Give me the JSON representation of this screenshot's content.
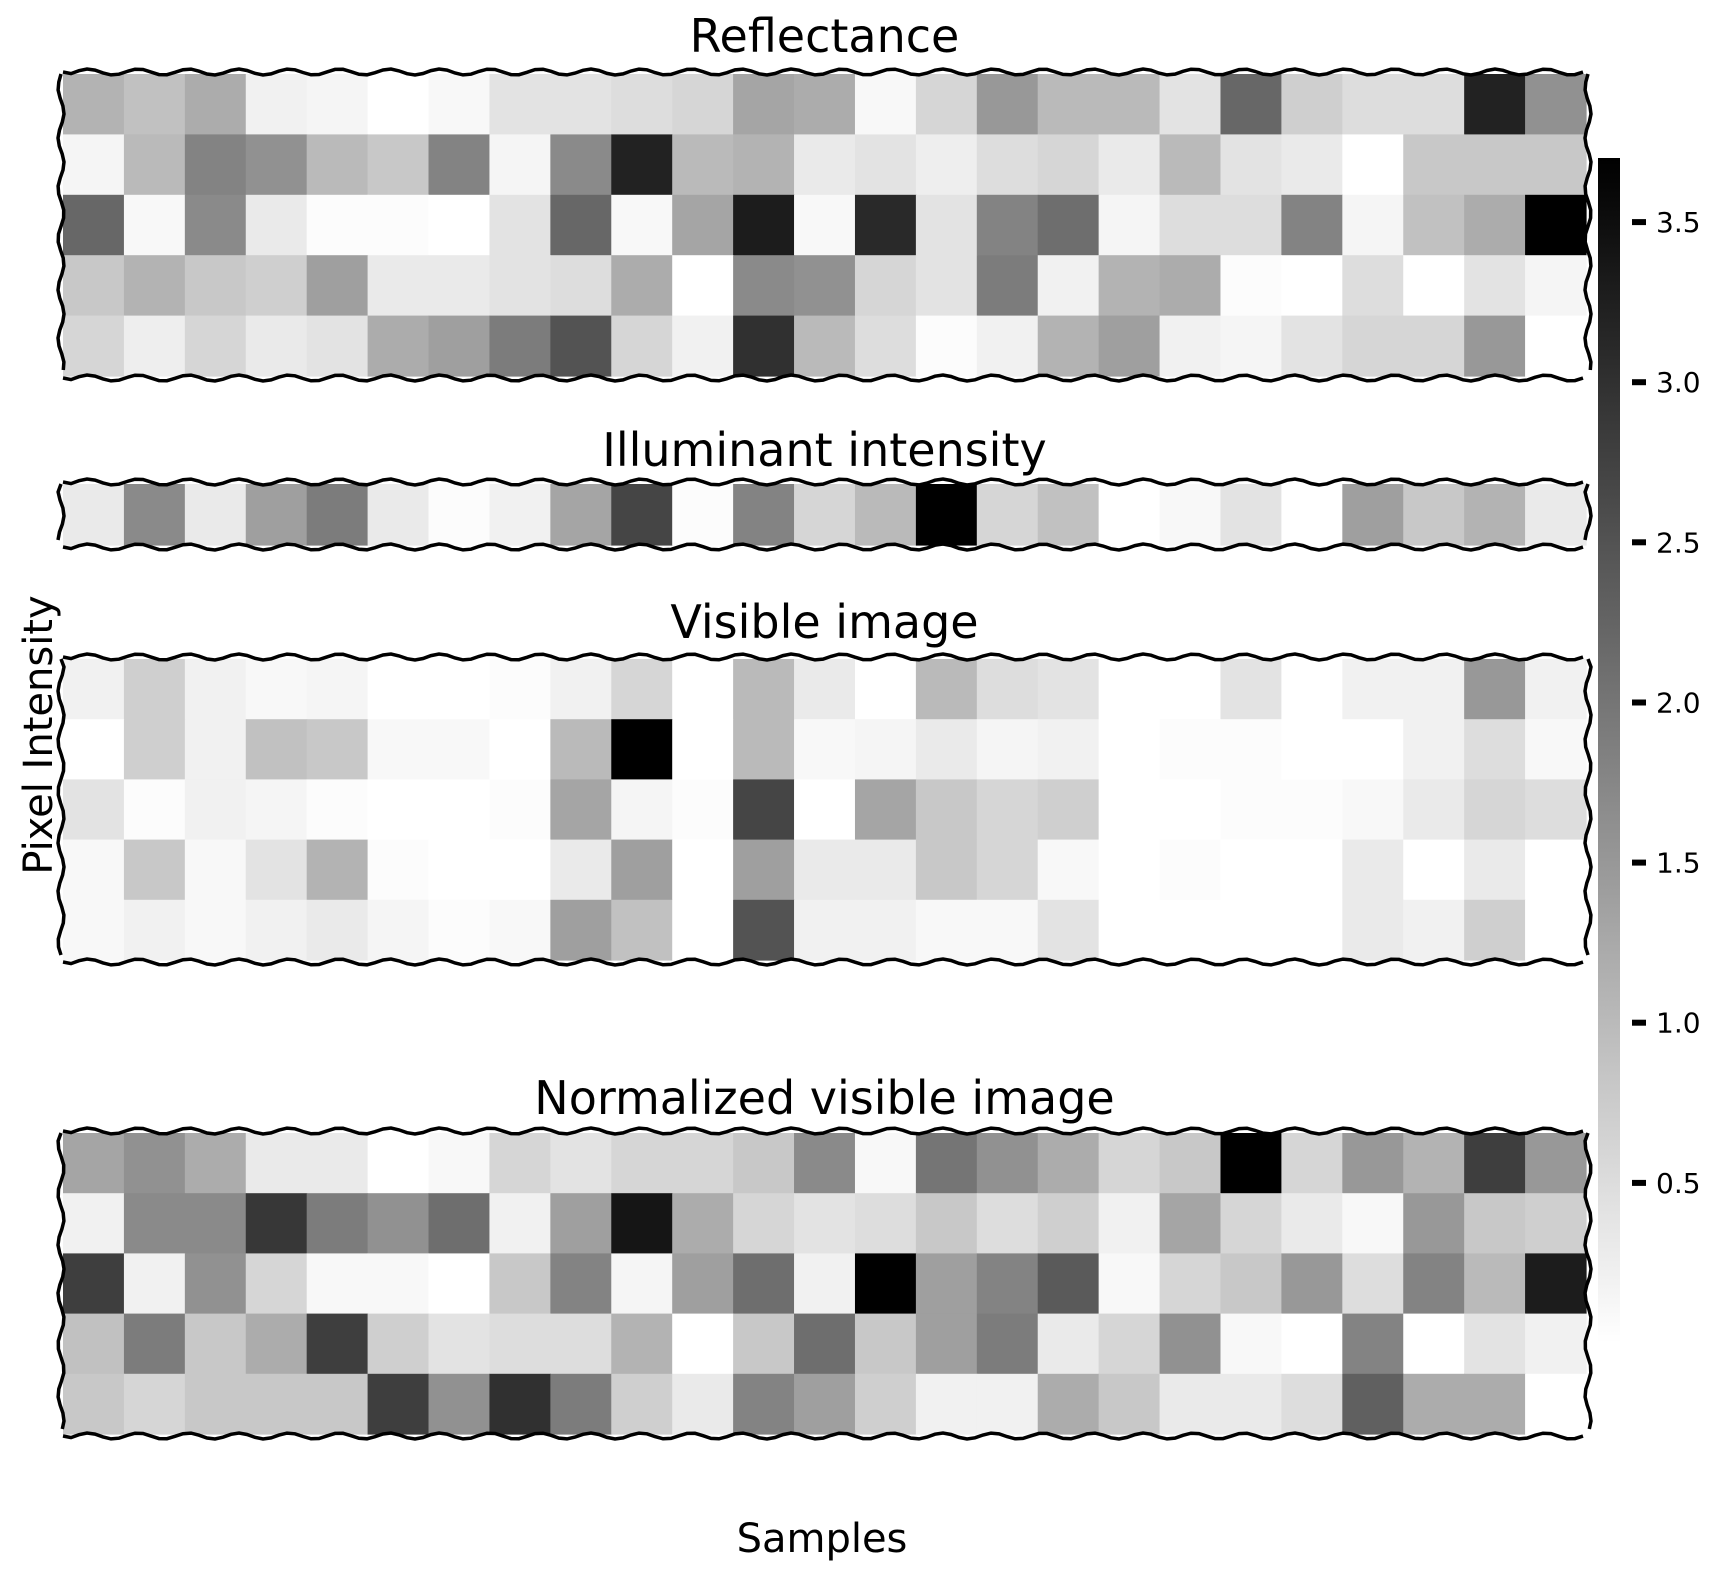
{
  "figure": {
    "xlabel": "Samples",
    "ylabel": "Pixel Intensity",
    "colormap": "gray_r",
    "frame_color": "#000000"
  },
  "colorbar": {
    "range": [
      0.0,
      3.7
    ],
    "ticks": [
      {
        "value": 0.5,
        "label": "0.5"
      },
      {
        "value": 1.0,
        "label": "1.0"
      },
      {
        "value": 1.5,
        "label": "1.5"
      },
      {
        "value": 2.0,
        "label": "2.0"
      },
      {
        "value": 2.5,
        "label": "2.5"
      },
      {
        "value": 3.0,
        "label": "3.0"
      },
      {
        "value": 3.5,
        "label": "3.5"
      }
    ]
  },
  "chart_data": [
    {
      "type": "heatmap",
      "title": "Reflectance",
      "rows": 5,
      "cols": 25,
      "values": [
        [
          1.1,
          0.9,
          1.2,
          0.2,
          0.15,
          0.0,
          0.1,
          0.4,
          0.4,
          0.5,
          0.6,
          1.3,
          1.2,
          0.1,
          0.6,
          1.5,
          1.0,
          1.0,
          0.4,
          2.2,
          0.7,
          0.5,
          0.5,
          3.2,
          1.6
        ],
        [
          0.15,
          1.0,
          1.8,
          1.6,
          1.0,
          0.8,
          1.8,
          0.15,
          1.7,
          3.2,
          1.0,
          1.1,
          0.3,
          0.4,
          0.25,
          0.5,
          0.6,
          0.3,
          1.0,
          0.4,
          0.3,
          0.0,
          0.8,
          0.8,
          0.8
        ],
        [
          2.2,
          0.1,
          1.7,
          0.3,
          0.05,
          0.05,
          0.0,
          0.4,
          2.2,
          0.1,
          1.3,
          3.3,
          0.1,
          3.1,
          0.4,
          1.8,
          2.1,
          0.15,
          0.5,
          0.5,
          1.8,
          0.15,
          0.9,
          1.2,
          3.7
        ],
        [
          0.8,
          1.1,
          0.8,
          0.7,
          1.4,
          0.3,
          0.3,
          0.4,
          0.5,
          1.2,
          0.0,
          1.7,
          1.6,
          0.6,
          0.4,
          1.9,
          0.2,
          1.1,
          1.2,
          0.05,
          0.0,
          0.5,
          0.0,
          0.4,
          0.15
        ],
        [
          0.6,
          0.25,
          0.6,
          0.3,
          0.4,
          1.2,
          1.4,
          1.9,
          2.5,
          0.6,
          0.2,
          3.0,
          1.0,
          0.5,
          0.05,
          0.2,
          1.1,
          1.4,
          0.2,
          0.15,
          0.4,
          0.6,
          0.6,
          1.5,
          0.0
        ]
      ]
    },
    {
      "type": "heatmap",
      "title": "Illuminant intensity",
      "rows": 1,
      "cols": 25,
      "values": [
        [
          0.3,
          1.7,
          0.3,
          1.4,
          1.9,
          0.3,
          0.05,
          0.2,
          1.3,
          2.7,
          0.05,
          1.8,
          0.6,
          1.0,
          3.7,
          0.6,
          0.9,
          0.0,
          0.1,
          0.4,
          0.0,
          1.4,
          0.8,
          1.1,
          0.3
        ]
      ]
    },
    {
      "type": "heatmap",
      "title": "Visible image",
      "rows": 5,
      "cols": 25,
      "values": [
        [
          0.2,
          0.7,
          0.2,
          0.1,
          0.15,
          0.0,
          0.0,
          0.05,
          0.2,
          0.6,
          0.0,
          1.0,
          0.3,
          0.0,
          1.0,
          0.5,
          0.4,
          0.0,
          0.0,
          0.4,
          0.0,
          0.2,
          0.2,
          1.5,
          0.2
        ],
        [
          0.0,
          0.7,
          0.2,
          0.9,
          0.8,
          0.1,
          0.1,
          0.0,
          1.0,
          3.7,
          0.0,
          1.0,
          0.1,
          0.15,
          0.3,
          0.15,
          0.2,
          0.0,
          0.05,
          0.05,
          0.0,
          0.0,
          0.2,
          0.5,
          0.1
        ],
        [
          0.4,
          0.05,
          0.2,
          0.15,
          0.05,
          0.0,
          0.0,
          0.05,
          1.3,
          0.15,
          0.05,
          2.7,
          0.0,
          1.3,
          0.8,
          0.6,
          0.7,
          0.0,
          0.0,
          0.05,
          0.05,
          0.1,
          0.3,
          0.6,
          0.5
        ],
        [
          0.1,
          0.8,
          0.1,
          0.4,
          1.1,
          0.05,
          0.0,
          0.0,
          0.3,
          1.4,
          0.0,
          1.4,
          0.3,
          0.3,
          0.8,
          0.6,
          0.1,
          0.0,
          0.05,
          0.0,
          0.0,
          0.3,
          0.0,
          0.3,
          0.0
        ],
        [
          0.1,
          0.2,
          0.1,
          0.2,
          0.3,
          0.15,
          0.05,
          0.1,
          1.4,
          0.9,
          0.0,
          2.5,
          0.2,
          0.2,
          0.1,
          0.1,
          0.4,
          0.0,
          0.0,
          0.0,
          0.0,
          0.3,
          0.2,
          0.7,
          0.0
        ]
      ]
    },
    {
      "type": "heatmap",
      "title": "Normalized visible image",
      "rows": 5,
      "cols": 25,
      "values": [
        [
          1.3,
          1.6,
          1.2,
          0.3,
          0.3,
          0.0,
          0.1,
          0.6,
          0.4,
          0.6,
          0.6,
          0.8,
          1.7,
          0.1,
          2.0,
          1.6,
          1.2,
          0.6,
          0.8,
          3.7,
          0.6,
          1.5,
          1.1,
          2.8,
          1.5
        ],
        [
          0.2,
          1.7,
          1.7,
          2.9,
          1.9,
          1.6,
          2.1,
          0.2,
          1.4,
          3.4,
          1.2,
          0.6,
          0.4,
          0.5,
          0.8,
          0.5,
          0.7,
          0.2,
          1.3,
          0.6,
          0.3,
          0.1,
          1.5,
          0.8,
          0.7
        ],
        [
          2.8,
          0.2,
          1.6,
          0.6,
          0.1,
          0.1,
          0.0,
          0.8,
          1.8,
          0.15,
          1.4,
          2.1,
          0.2,
          3.7,
          1.4,
          1.8,
          2.4,
          0.1,
          0.6,
          0.8,
          1.5,
          0.5,
          1.8,
          1.0,
          3.3
        ],
        [
          0.9,
          1.9,
          0.8,
          1.2,
          2.8,
          0.7,
          0.4,
          0.5,
          0.5,
          1.1,
          0.0,
          0.8,
          2.1,
          0.8,
          1.4,
          1.9,
          0.3,
          0.6,
          1.6,
          0.1,
          0.0,
          1.8,
          0.0,
          0.4,
          0.2
        ],
        [
          0.8,
          0.6,
          0.8,
          0.8,
          0.8,
          2.8,
          1.6,
          3.0,
          1.9,
          0.7,
          0.3,
          1.8,
          1.4,
          0.7,
          0.2,
          0.2,
          1.2,
          0.8,
          0.3,
          0.3,
          0.5,
          2.3,
          1.2,
          1.2,
          0.0
        ]
      ]
    }
  ]
}
